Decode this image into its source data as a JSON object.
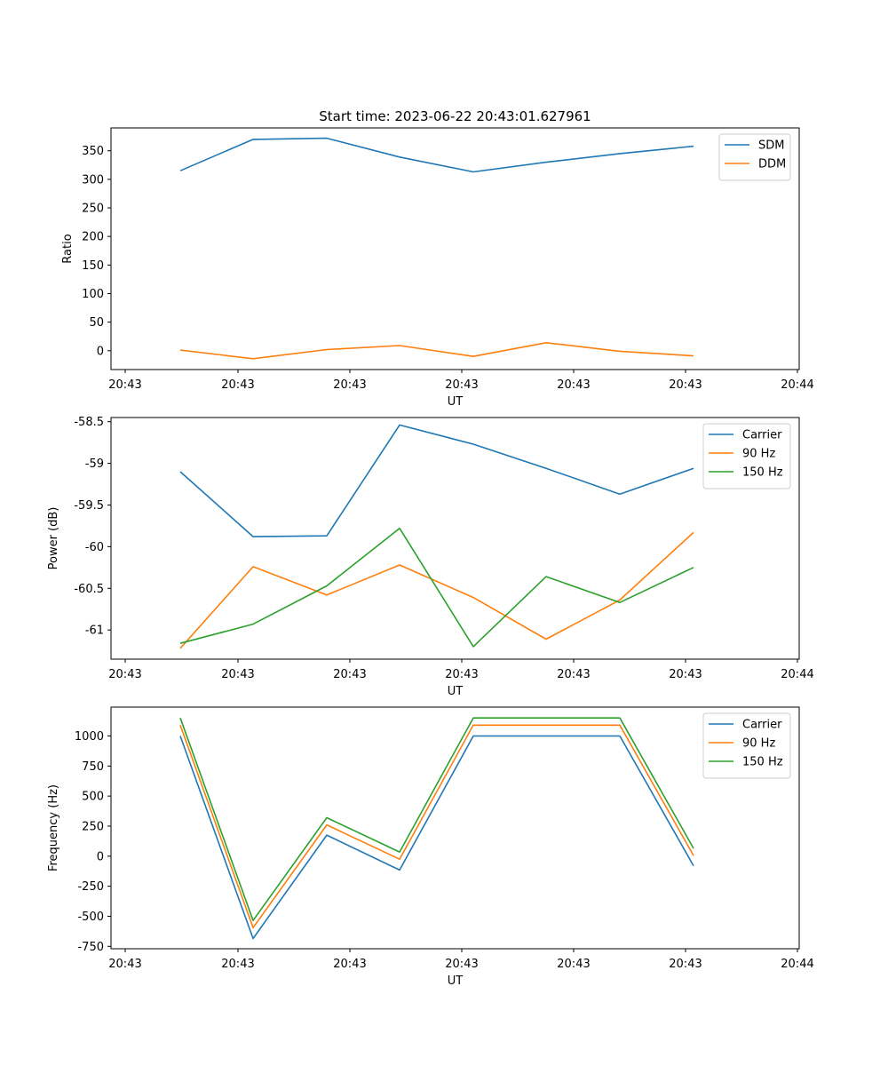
{
  "chart_data": [
    {
      "type": "line",
      "title": "Start time: 2023-06-22 20:43:01.627961",
      "xlabel": "UT",
      "ylabel": "Ratio",
      "x_tick_labels": [
        "20:43",
        "20:43",
        "20:43",
        "20:43",
        "20:43",
        "20:43",
        "20:44"
      ],
      "y_ticks": [
        0,
        50,
        100,
        150,
        200,
        250,
        300,
        350
      ],
      "ylim": [
        -33,
        390
      ],
      "legend": "top-right",
      "grid": false,
      "series": [
        {
          "name": "SDM",
          "color": "#1f77b4",
          "values": [
            315,
            370,
            372,
            339,
            313,
            330,
            345,
            358
          ]
        },
        {
          "name": "DDM",
          "color": "#ff7f0e",
          "values": [
            1,
            -14,
            2,
            9,
            -10,
            14,
            -1,
            -9
          ]
        }
      ]
    },
    {
      "type": "line",
      "title": "",
      "xlabel": "UT",
      "ylabel": "Power (dB)",
      "x_tick_labels": [
        "20:43",
        "20:43",
        "20:43",
        "20:43",
        "20:43",
        "20:43",
        "20:44"
      ],
      "y_ticks": [
        -61.0,
        -60.5,
        -60.0,
        -59.5,
        -59.0,
        -58.5
      ],
      "ylim": [
        -61.35,
        -58.45
      ],
      "legend": "top-right",
      "grid": false,
      "series": [
        {
          "name": "Carrier",
          "color": "#1f77b4",
          "values": [
            -59.1,
            -59.88,
            -59.87,
            -58.54,
            -58.77,
            -59.06,
            -59.37,
            -59.06
          ]
        },
        {
          "name": "90 Hz",
          "color": "#ff7f0e",
          "values": [
            -61.22,
            -60.24,
            -60.58,
            -60.22,
            -60.61,
            -61.11,
            -60.64,
            -59.83
          ]
        },
        {
          "name": "150 Hz",
          "color": "#2ca02c",
          "values": [
            -61.16,
            -60.93,
            -60.47,
            -59.78,
            -61.2,
            -60.36,
            -60.67,
            -60.25
          ]
        }
      ]
    },
    {
      "type": "line",
      "title": "",
      "xlabel": "UT",
      "ylabel": "Frequency (Hz)",
      "x_tick_labels": [
        "20:43",
        "20:43",
        "20:43",
        "20:43",
        "20:43",
        "20:43",
        "20:44"
      ],
      "y_ticks": [
        -750,
        -500,
        -250,
        0,
        250,
        500,
        750,
        1000
      ],
      "ylim": [
        -770,
        1240
      ],
      "legend": "top-right",
      "grid": false,
      "series": [
        {
          "name": "Carrier",
          "color": "#1f77b4",
          "values": [
            1000,
            -685,
            175,
            -115,
            1000,
            1000,
            1000,
            -80
          ]
        },
        {
          "name": "90 Hz",
          "color": "#ff7f0e",
          "values": [
            1090,
            -595,
            260,
            -25,
            1090,
            1090,
            1090,
            5
          ]
        },
        {
          "name": "150 Hz",
          "color": "#2ca02c",
          "values": [
            1150,
            -535,
            320,
            35,
            1150,
            1150,
            1150,
            65
          ]
        }
      ]
    }
  ]
}
